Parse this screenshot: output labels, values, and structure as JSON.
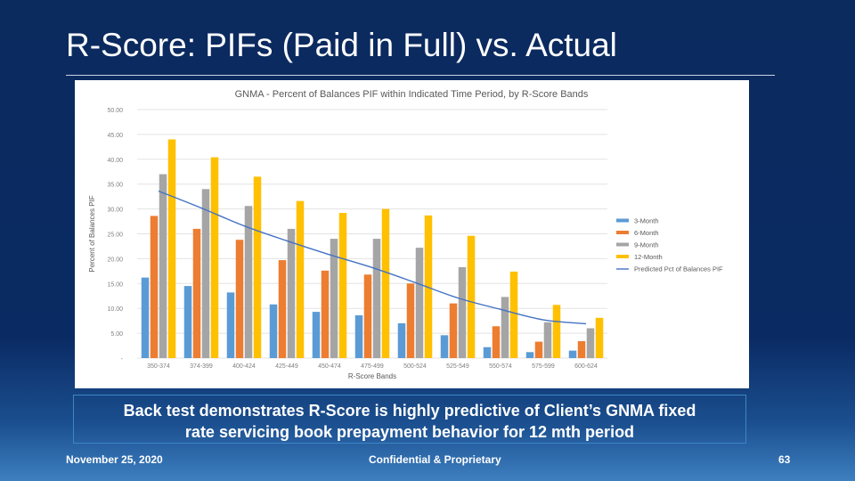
{
  "slide": {
    "title": "R-Score:  PIFs (Paid in Full) vs. Actual",
    "caption_line1": "Back test demonstrates R-Score is highly predictive of Client’s GNMA fixed",
    "caption_line2": "rate servicing book prepayment behavior for 12 mth period",
    "footer_date": "November 25, 2020",
    "footer_center": "Confidential & Proprietary",
    "page_number": "63"
  },
  "chart_data": {
    "type": "bar",
    "title": "GNMA - Percent of Balances PIF within Indicated Time Period, by R-Score Bands",
    "xlabel": "R-Score Bands",
    "ylabel": "Percent of Balances PIF",
    "ylim": [
      0,
      50
    ],
    "yticks": [
      "-",
      "5.00",
      "10.00",
      "15.00",
      "20.00",
      "25.00",
      "30.00",
      "35.00",
      "40.00",
      "45.00",
      "50.00"
    ],
    "grid": true,
    "legend_position": "right",
    "categories": [
      "350-374",
      "374-399",
      "400-424",
      "425-449",
      "450-474",
      "475-499",
      "500-524",
      "525-549",
      "550-574",
      "575-599",
      "600-624"
    ],
    "series": [
      {
        "name": "3-Month",
        "color": "#5b9bd5",
        "values": [
          16.2,
          14.5,
          13.2,
          10.8,
          9.3,
          8.6,
          7.0,
          4.6,
          2.2,
          1.2,
          1.5
        ]
      },
      {
        "name": "6-Month",
        "color": "#ed7d31",
        "values": [
          28.6,
          26.0,
          23.8,
          19.7,
          17.6,
          16.8,
          15.0,
          11.0,
          6.4,
          3.3,
          3.4
        ]
      },
      {
        "name": "9-Month",
        "color": "#a5a5a5",
        "values": [
          37.0,
          34.0,
          30.6,
          26.0,
          24.0,
          24.0,
          22.2,
          18.3,
          12.3,
          7.2,
          6.0
        ]
      },
      {
        "name": "12-Month",
        "color": "#ffc000",
        "values": [
          44.0,
          40.4,
          36.5,
          31.6,
          29.2,
          30.0,
          28.7,
          24.6,
          17.4,
          10.7,
          8.1
        ]
      }
    ],
    "line_series": {
      "name": "Predicted Pct of Balances PIF",
      "color": "#4472c4",
      "values": [
        33.6,
        30.2,
        26.6,
        23.6,
        20.8,
        18.2,
        15.2,
        12.1,
        9.8,
        7.7,
        6.9
      ]
    }
  }
}
